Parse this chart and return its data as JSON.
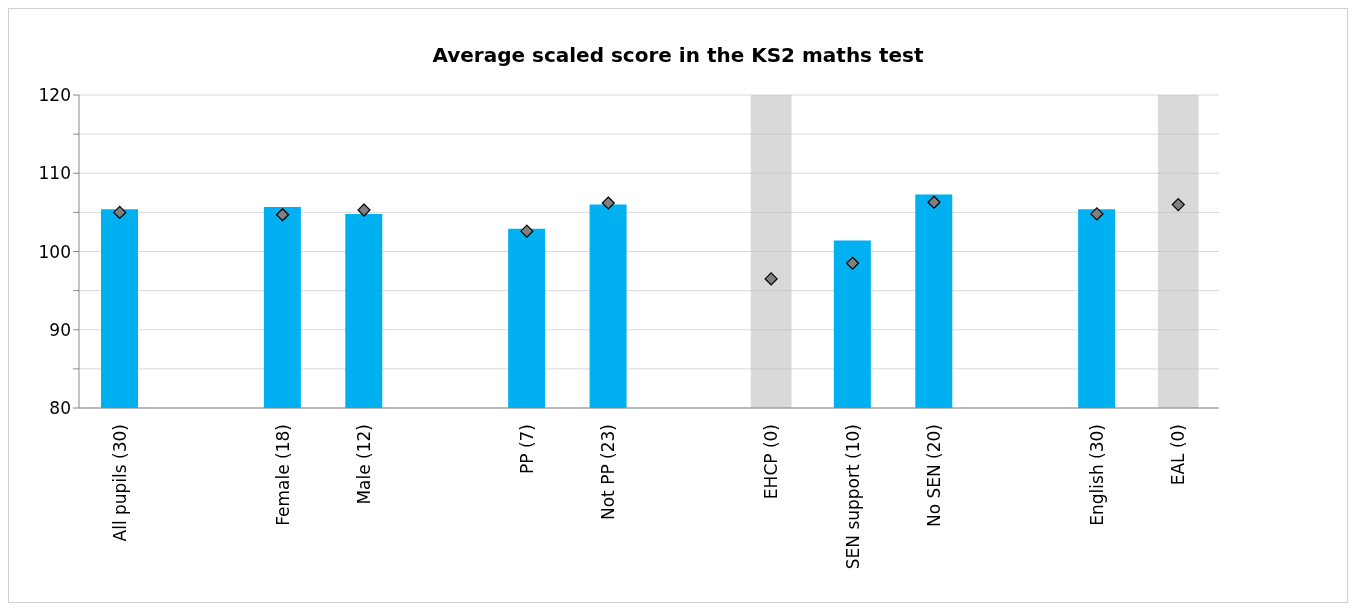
{
  "chart_data": {
    "type": "bar",
    "title": "Average scaled score in the KS2 maths test",
    "categories": [
      "All pupils (30)",
      null,
      "Female (18)",
      "Male (12)",
      null,
      "PP (7)",
      "Not PP (23)",
      null,
      "EHCP (0)",
      "SEN support (10)",
      "No SEN (20)",
      null,
      "English (30)",
      "EAL (0)"
    ],
    "series": [
      {
        "color": "#00b0f0",
        "values": [
          105.4,
          null,
          105.7,
          104.8,
          null,
          102.9,
          106.0,
          null,
          null,
          101.4,
          107.3,
          null,
          105.4,
          null
        ]
      },
      {
        "type": "scatter",
        "color": "#808080",
        "marker": "diamond",
        "values": [
          105.0,
          null,
          104.7,
          105.3,
          null,
          102.6,
          106.2,
          null,
          96.5,
          98.5,
          106.3,
          null,
          104.8,
          106.0
        ]
      }
    ],
    "ylim": [
      80,
      120
    ],
    "yticks": [
      80,
      {
        "value": 85,
        "label": null
      },
      90,
      {
        "value": 95,
        "label": null
      },
      100,
      {
        "value": 105,
        "label": null
      },
      110,
      {
        "value": 115,
        "label": null
      },
      120
    ],
    "grid": "y",
    "bands": [
      {
        "axis": "x",
        "from": "EHCP (0)",
        "to": "EHCP (0)",
        "color": "#bfbfbf"
      },
      {
        "axis": "x",
        "from": "EAL (0)",
        "to": "EAL (0)",
        "color": "#bfbfbf"
      }
    ]
  }
}
